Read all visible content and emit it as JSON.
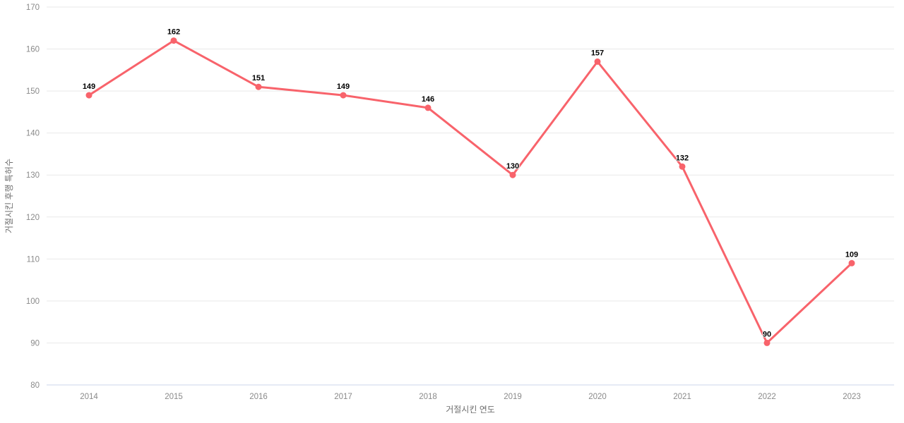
{
  "chart_data": {
    "type": "line",
    "x": [
      "2014",
      "2015",
      "2016",
      "2017",
      "2018",
      "2019",
      "2020",
      "2021",
      "2022",
      "2023"
    ],
    "values": [
      149,
      162,
      151,
      149,
      146,
      130,
      157,
      132,
      90,
      109
    ],
    "data_labels": [
      "149",
      "162",
      "151",
      "149",
      "146",
      "130",
      "157",
      "132",
      "90",
      "109"
    ],
    "title": "",
    "xlabel": "거절시킨 연도",
    "ylabel": "거절시킨 후행 특허수",
    "ylim": [
      80,
      170
    ],
    "ytick_step": 10,
    "yticks": [
      "80",
      "90",
      "100",
      "110",
      "120",
      "130",
      "140",
      "150",
      "160",
      "170"
    ],
    "grid": true,
    "legend_position": "none",
    "marker": "circle",
    "colors": {
      "series": "#f8636b",
      "grid_line": "#e9e9e9",
      "axis_line": "#ccd6eb",
      "tick_label": "#8a8a8a",
      "axis_title": "#6f6f6f",
      "data_label": "#000000",
      "background": "#ffffff"
    }
  }
}
